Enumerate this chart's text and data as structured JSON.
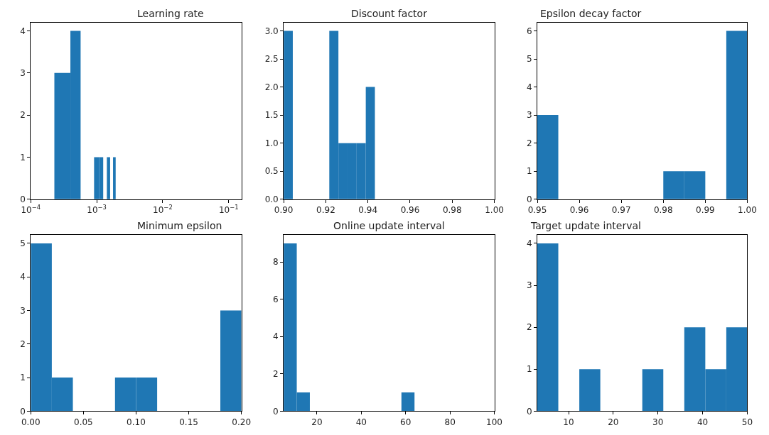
{
  "chart_data": [
    {
      "type": "histogram",
      "title": "Learning rate",
      "log": "x",
      "color": "#1f77b4",
      "bins": [
        0.000228,
        0.000399,
        0.00057,
        0.000912,
        0.001083,
        0.001254,
        0.001425,
        0.001596,
        0.001767,
        0.001938
      ],
      "values": [
        3,
        4,
        0,
        1,
        1,
        0,
        1,
        0,
        1
      ],
      "xlim": [
        0.0001,
        0.156
      ],
      "xticks": [
        {
          "value": 0.0001,
          "label": "10$^{−4}$"
        },
        {
          "value": 0.001,
          "label": "10$^{−3}$"
        },
        {
          "value": 0.01,
          "label": "10$^{−2}$"
        },
        {
          "value": 0.1,
          "label": "10$^{−1}$"
        }
      ],
      "ylim": [
        0,
        4.2
      ],
      "yticks": [
        0,
        1,
        2,
        3,
        4
      ]
    },
    {
      "type": "histogram",
      "title": "Discount factor",
      "color": "#1f77b4",
      "bins": [
        0.9,
        0.90433,
        0.90866,
        0.91299,
        0.91732,
        0.92165,
        0.92598,
        0.93031,
        0.93464,
        0.93897,
        0.9433
      ],
      "values": [
        3,
        0,
        0,
        0,
        0,
        3,
        1,
        1,
        1,
        2
      ],
      "xlim": [
        0.9,
        1.0
      ],
      "xticks": [
        {
          "value": 0.9,
          "label": "0.90"
        },
        {
          "value": 0.92,
          "label": "0.92"
        },
        {
          "value": 0.94,
          "label": "0.94"
        },
        {
          "value": 0.96,
          "label": "0.96"
        },
        {
          "value": 0.98,
          "label": "0.98"
        },
        {
          "value": 1.0,
          "label": "1.00"
        }
      ],
      "ylim": [
        0,
        3.15
      ],
      "yticks": [
        {
          "value": 0,
          "label": "0.0"
        },
        {
          "value": 0.5,
          "label": "0.5"
        },
        {
          "value": 1,
          "label": "1.0"
        },
        {
          "value": 1.5,
          "label": "1.5"
        },
        {
          "value": 2,
          "label": "2.0"
        },
        {
          "value": 2.5,
          "label": "2.5"
        },
        {
          "value": 3,
          "label": "3.0"
        }
      ]
    },
    {
      "type": "histogram",
      "title": "Epsilon decay factor",
      "color": "#1f77b4",
      "bins": [
        0.95,
        0.955,
        0.96,
        0.965,
        0.97,
        0.975,
        0.98,
        0.985,
        0.99,
        0.995,
        1.0
      ],
      "values": [
        3,
        0,
        0,
        0,
        0,
        0,
        1,
        1,
        0,
        6
      ],
      "xlim": [
        0.95,
        1.0
      ],
      "xticks": [
        0.95,
        0.96,
        0.97,
        0.98,
        0.99,
        {
          "value": 1.0,
          "label": "1.00"
        }
      ],
      "ylim": [
        0,
        6.3
      ],
      "yticks": [
        0,
        1,
        2,
        3,
        4,
        5,
        6
      ]
    },
    {
      "type": "histogram",
      "title": "Minimum epsilon",
      "color": "#1f77b4",
      "bins": [
        0,
        0.02,
        0.04,
        0.06,
        0.08,
        0.1,
        0.12,
        0.14,
        0.16,
        0.18,
        0.2
      ],
      "values": [
        5,
        1,
        0,
        0,
        1,
        1,
        0,
        0,
        0,
        3
      ],
      "xlim": [
        0,
        0.2
      ],
      "xticks": [
        {
          "value": 0,
          "label": "0.00"
        },
        0.05,
        {
          "value": 0.1,
          "label": "0.10"
        },
        0.15,
        {
          "value": 0.2,
          "label": "0.20"
        }
      ],
      "ylim": [
        0,
        5.25
      ],
      "yticks": [
        0,
        1,
        2,
        3,
        4,
        5
      ]
    },
    {
      "type": "histogram",
      "title": "Online update interval",
      "color": "#1f77b4",
      "bins": [
        5,
        10.9,
        16.8,
        22.7,
        28.6,
        34.5,
        40.4,
        46.3,
        52.2,
        58.1,
        64
      ],
      "values": [
        9,
        1,
        0,
        0,
        0,
        0,
        0,
        0,
        0,
        1
      ],
      "xlim": [
        5,
        100
      ],
      "xticks": [
        20,
        40,
        60,
        80,
        100
      ],
      "ylim": [
        0,
        9.45
      ],
      "yticks": [
        0,
        2,
        4,
        6,
        8
      ]
    },
    {
      "type": "histogram",
      "title": "Target update interval",
      "color": "#1f77b4",
      "bins": [
        3,
        7.7,
        12.4,
        17.1,
        21.8,
        26.5,
        31.2,
        35.9,
        40.6,
        45.3,
        50
      ],
      "values": [
        4,
        0,
        1,
        0,
        0,
        1,
        0,
        2,
        1,
        2
      ],
      "xlim": [
        3,
        50
      ],
      "xticks": [
        10,
        20,
        30,
        40,
        50
      ],
      "ylim": [
        0,
        4.2
      ],
      "yticks": [
        0,
        1,
        2,
        3,
        4
      ]
    }
  ]
}
